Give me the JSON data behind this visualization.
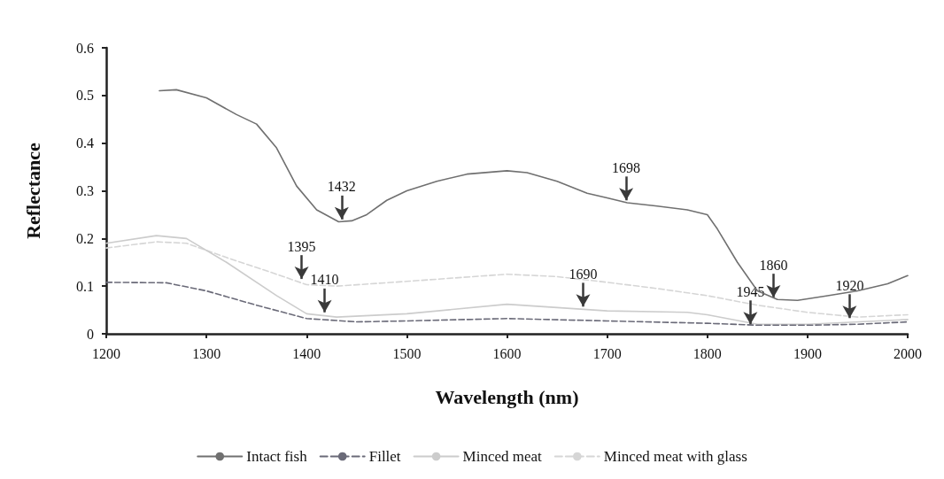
{
  "chart_data": {
    "type": "line",
    "xlabel": "Wavelength (nm)",
    "ylabel": "Reflectance",
    "xlim": [
      1200,
      2000
    ],
    "xticks": [
      1200,
      1300,
      1400,
      1500,
      1600,
      1700,
      1800,
      1900,
      2000
    ],
    "ylim": [
      0,
      0.6
    ],
    "yticks": [
      0,
      0.1,
      0.2,
      0.3,
      0.4,
      0.5,
      0.6
    ],
    "grid": false,
    "legend": "bottom",
    "marker": "none",
    "series": [
      {
        "name": "Intact fish",
        "color": "#707070",
        "line_style": "solid",
        "x": [
          1253,
          1270,
          1300,
          1330,
          1350,
          1370,
          1390,
          1410,
          1432,
          1445,
          1460,
          1480,
          1500,
          1530,
          1560,
          1600,
          1620,
          1650,
          1680,
          1700,
          1720,
          1750,
          1780,
          1800,
          1810,
          1830,
          1850,
          1870,
          1890,
          1920,
          1950,
          1980,
          2000
        ],
        "values": [
          0.51,
          0.512,
          0.495,
          0.46,
          0.44,
          0.39,
          0.31,
          0.26,
          0.235,
          0.237,
          0.25,
          0.28,
          0.3,
          0.32,
          0.335,
          0.342,
          0.338,
          0.32,
          0.295,
          0.285,
          0.275,
          0.268,
          0.26,
          0.25,
          0.22,
          0.15,
          0.09,
          0.072,
          0.07,
          0.08,
          0.09,
          0.105,
          0.122
        ]
      },
      {
        "name": "Fillet",
        "color": "#6a6a78",
        "line_style": "dashed",
        "x": [
          1200,
          1260,
          1300,
          1350,
          1400,
          1450,
          1500,
          1600,
          1700,
          1800,
          1850,
          1900,
          1950,
          2000
        ],
        "values": [
          0.108,
          0.107,
          0.09,
          0.06,
          0.032,
          0.025,
          0.027,
          0.032,
          0.027,
          0.022,
          0.018,
          0.018,
          0.02,
          0.025
        ]
      },
      {
        "name": "Minced meat",
        "color": "#cccccc",
        "line_style": "solid",
        "x": [
          1200,
          1250,
          1280,
          1320,
          1370,
          1400,
          1430,
          1500,
          1600,
          1650,
          1700,
          1780,
          1800,
          1850,
          1900,
          2000
        ],
        "values": [
          0.19,
          0.206,
          0.2,
          0.15,
          0.08,
          0.042,
          0.035,
          0.042,
          0.062,
          0.055,
          0.048,
          0.045,
          0.04,
          0.02,
          0.02,
          0.03
        ]
      },
      {
        "name": "Minced meat with glass",
        "color": "#d6d6d6",
        "line_style": "dashed",
        "x": [
          1200,
          1250,
          1280,
          1320,
          1370,
          1400,
          1430,
          1500,
          1600,
          1650,
          1700,
          1750,
          1800,
          1850,
          1900,
          1950,
          2000
        ],
        "values": [
          0.18,
          0.193,
          0.19,
          0.16,
          0.125,
          0.103,
          0.1,
          0.11,
          0.125,
          0.12,
          0.108,
          0.095,
          0.08,
          0.06,
          0.045,
          0.035,
          0.04
        ]
      }
    ],
    "annotations": [
      {
        "text": "1432",
        "x": 1435,
        "y": 0.24
      },
      {
        "text": "1395",
        "x": 1395,
        "y": 0.115
      },
      {
        "text": "1410",
        "x": 1418,
        "y": 0.045
      },
      {
        "text": "1698",
        "x": 1719,
        "y": 0.28
      },
      {
        "text": "1690",
        "x": 1676,
        "y": 0.057
      },
      {
        "text": "1860",
        "x": 1866,
        "y": 0.076
      },
      {
        "text": "1945",
        "x": 1843,
        "y": 0.02
      },
      {
        "text": "1920",
        "x": 1942,
        "y": 0.033
      }
    ]
  }
}
